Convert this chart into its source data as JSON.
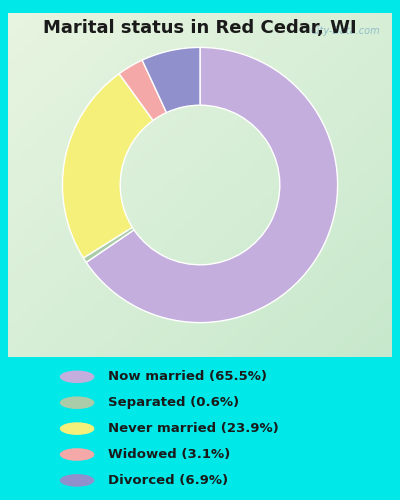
{
  "title": "Marital status in Red Cedar, WI",
  "title_fontsize": 13,
  "categories": [
    "Now married",
    "Separated",
    "Never married",
    "Widowed",
    "Divorced"
  ],
  "values": [
    65.5,
    0.6,
    23.9,
    3.1,
    6.9
  ],
  "colors": [
    "#c4aedd",
    "#aacca8",
    "#f5f07a",
    "#f5a8a8",
    "#9090cc"
  ],
  "legend_labels": [
    "Now married (65.5%)",
    "Separated (0.6%)",
    "Never married (23.9%)",
    "Widowed (3.1%)",
    "Divorced (6.9%)"
  ],
  "background_color": "#00e8e8",
  "chart_bg_top_left": "#d8eed8",
  "chart_bg_bottom_right": "#e8f5e8",
  "watermark": "City-Data.com",
  "donut_width": 0.42,
  "start_angle": 90
}
